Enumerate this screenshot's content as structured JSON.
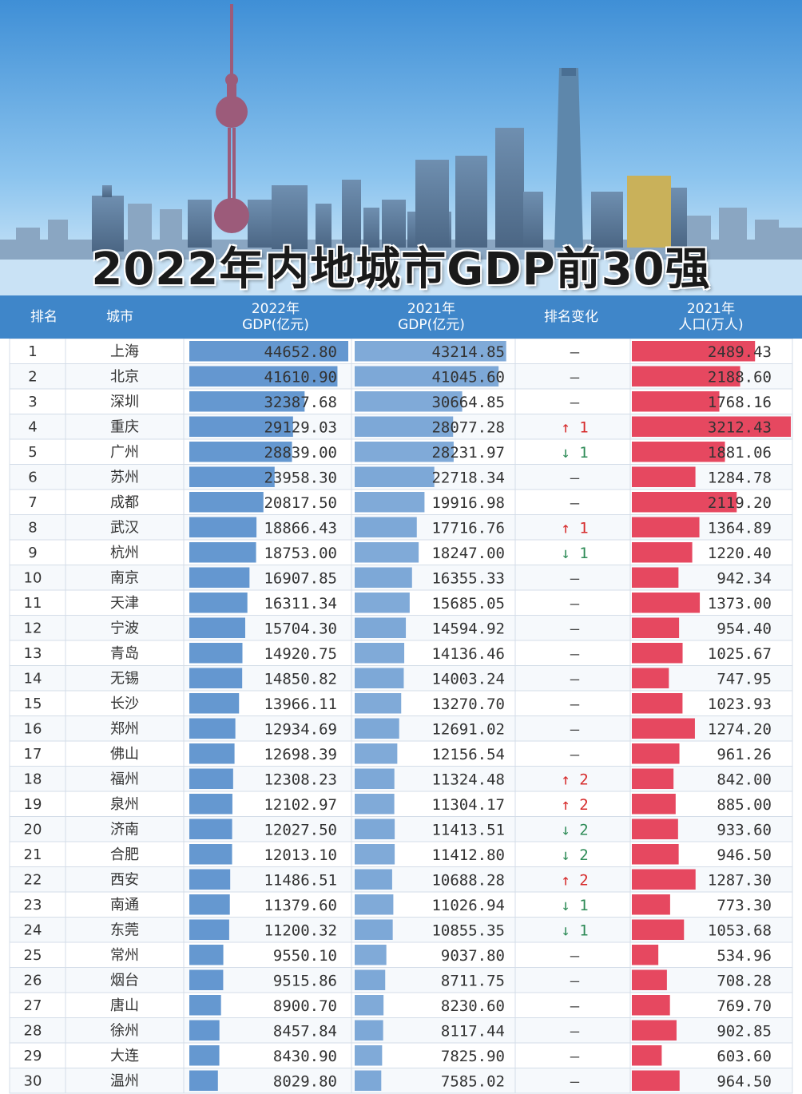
{
  "title": "2022年内地城市GDP前30强",
  "header": {
    "rank": "排名",
    "city": "城市",
    "gdp2022_line1": "2022年",
    "gdp2022_line2": "GDP(亿元)",
    "gdp2021_line1": "2021年",
    "gdp2021_line2": "GDP(亿元)",
    "change": "排名变化",
    "pop_line1": "2021年",
    "pop_line2": "人口(万人)"
  },
  "colors": {
    "header_bg": "#3f86c9",
    "gdp_bar": "#4a86c8",
    "pop_bar": "#e64860",
    "up_arrow": "#d62b2b",
    "down_arrow": "#2e8b57"
  },
  "chart_data": {
    "type": "table",
    "columns": [
      "排名",
      "城市",
      "2022年GDP(亿元)",
      "2021年GDP(亿元)",
      "排名变化",
      "2021年人口(万人)"
    ],
    "rows": [
      {
        "rank": "1",
        "city": "上海",
        "gdp2022": "44652.80",
        "gdp2021": "43214.85",
        "change": "–",
        "pop": "2489.43"
      },
      {
        "rank": "2",
        "city": "北京",
        "gdp2022": "41610.90",
        "gdp2021": "41045.60",
        "change": "–",
        "pop": "2188.60"
      },
      {
        "rank": "3",
        "city": "深圳",
        "gdp2022": "32387.68",
        "gdp2021": "30664.85",
        "change": "–",
        "pop": "1768.16"
      },
      {
        "rank": "4",
        "city": "重庆",
        "gdp2022": "29129.03",
        "gdp2021": "28077.28",
        "change": "↑ 1",
        "pop": "3212.43"
      },
      {
        "rank": "5",
        "city": "广州",
        "gdp2022": "28839.00",
        "gdp2021": "28231.97",
        "change": "↓ 1",
        "pop": "1881.06"
      },
      {
        "rank": "6",
        "city": "苏州",
        "gdp2022": "23958.30",
        "gdp2021": "22718.34",
        "change": "–",
        "pop": "1284.78"
      },
      {
        "rank": "7",
        "city": "成都",
        "gdp2022": "20817.50",
        "gdp2021": "19916.98",
        "change": "–",
        "pop": "2119.20"
      },
      {
        "rank": "8",
        "city": "武汉",
        "gdp2022": "18866.43",
        "gdp2021": "17716.76",
        "change": "↑ 1",
        "pop": "1364.89"
      },
      {
        "rank": "9",
        "city": "杭州",
        "gdp2022": "18753.00",
        "gdp2021": "18247.00",
        "change": "↓ 1",
        "pop": "1220.40"
      },
      {
        "rank": "10",
        "city": "南京",
        "gdp2022": "16907.85",
        "gdp2021": "16355.33",
        "change": "–",
        "pop": "942.34"
      },
      {
        "rank": "11",
        "city": "天津",
        "gdp2022": "16311.34",
        "gdp2021": "15685.05",
        "change": "–",
        "pop": "1373.00"
      },
      {
        "rank": "12",
        "city": "宁波",
        "gdp2022": "15704.30",
        "gdp2021": "14594.92",
        "change": "–",
        "pop": "954.40"
      },
      {
        "rank": "13",
        "city": "青岛",
        "gdp2022": "14920.75",
        "gdp2021": "14136.46",
        "change": "–",
        "pop": "1025.67"
      },
      {
        "rank": "14",
        "city": "无锡",
        "gdp2022": "14850.82",
        "gdp2021": "14003.24",
        "change": "–",
        "pop": "747.95"
      },
      {
        "rank": "15",
        "city": "长沙",
        "gdp2022": "13966.11",
        "gdp2021": "13270.70",
        "change": "–",
        "pop": "1023.93"
      },
      {
        "rank": "16",
        "city": "郑州",
        "gdp2022": "12934.69",
        "gdp2021": "12691.02",
        "change": "–",
        "pop": "1274.20"
      },
      {
        "rank": "17",
        "city": "佛山",
        "gdp2022": "12698.39",
        "gdp2021": "12156.54",
        "change": "–",
        "pop": "961.26"
      },
      {
        "rank": "18",
        "city": "福州",
        "gdp2022": "12308.23",
        "gdp2021": "11324.48",
        "change": "↑ 2",
        "pop": "842.00"
      },
      {
        "rank": "19",
        "city": "泉州",
        "gdp2022": "12102.97",
        "gdp2021": "11304.17",
        "change": "↑ 2",
        "pop": "885.00"
      },
      {
        "rank": "20",
        "city": "济南",
        "gdp2022": "12027.50",
        "gdp2021": "11413.51",
        "change": "↓ 2",
        "pop": "933.60"
      },
      {
        "rank": "21",
        "city": "合肥",
        "gdp2022": "12013.10",
        "gdp2021": "11412.80",
        "change": "↓ 2",
        "pop": "946.50"
      },
      {
        "rank": "22",
        "city": "西安",
        "gdp2022": "11486.51",
        "gdp2021": "10688.28",
        "change": "↑ 2",
        "pop": "1287.30"
      },
      {
        "rank": "23",
        "city": "南通",
        "gdp2022": "11379.60",
        "gdp2021": "11026.94",
        "change": "↓ 1",
        "pop": "773.30"
      },
      {
        "rank": "24",
        "city": "东莞",
        "gdp2022": "11200.32",
        "gdp2021": "10855.35",
        "change": "↓ 1",
        "pop": "1053.68"
      },
      {
        "rank": "25",
        "city": "常州",
        "gdp2022": "9550.10",
        "gdp2021": "9037.80",
        "change": "–",
        "pop": "534.96"
      },
      {
        "rank": "26",
        "city": "烟台",
        "gdp2022": "9515.86",
        "gdp2021": "8711.75",
        "change": "–",
        "pop": "708.28"
      },
      {
        "rank": "27",
        "city": "唐山",
        "gdp2022": "8900.70",
        "gdp2021": "8230.60",
        "change": "–",
        "pop": "769.70"
      },
      {
        "rank": "28",
        "city": "徐州",
        "gdp2022": "8457.84",
        "gdp2021": "8117.44",
        "change": "–",
        "pop": "902.85"
      },
      {
        "rank": "29",
        "city": "大连",
        "gdp2022": "8430.90",
        "gdp2021": "7825.90",
        "change": "–",
        "pop": "603.60"
      },
      {
        "rank": "30",
        "city": "温州",
        "gdp2022": "8029.80",
        "gdp2021": "7585.02",
        "change": "–",
        "pop": "964.50"
      }
    ]
  }
}
